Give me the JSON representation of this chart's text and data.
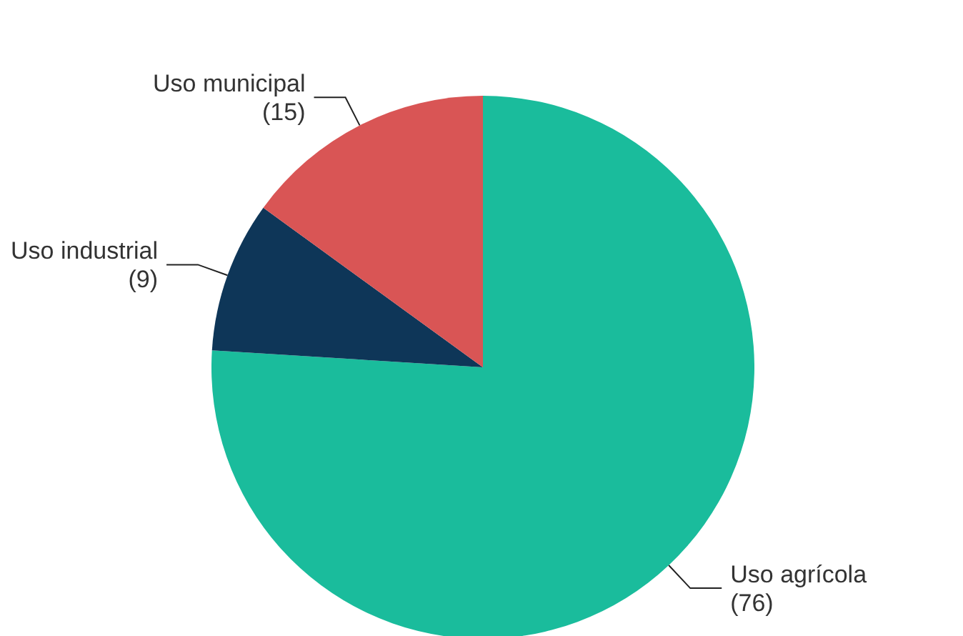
{
  "chart_data": {
    "type": "pie",
    "categories": [
      "Uso agrícola",
      "Uso industrial",
      "Uso municipal"
    ],
    "values": [
      76,
      9,
      15
    ],
    "value_labels": [
      "(76)",
      "(9)",
      "(15)"
    ],
    "colors": [
      "#1abc9c",
      "#0e3658",
      "#d95555"
    ],
    "legend": false
  }
}
